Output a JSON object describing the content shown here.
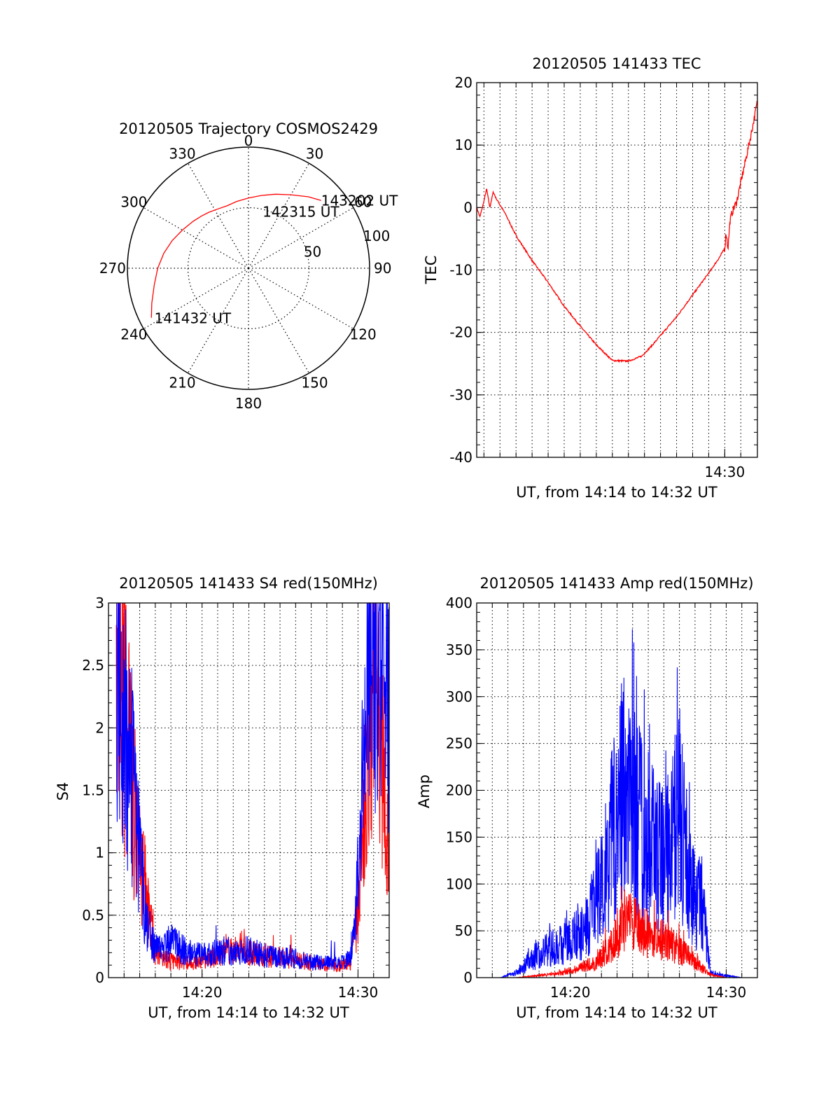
{
  "chart_data": [
    {
      "type": "polar",
      "title": "20120505 Trajectory COSMOS2429",
      "angle_labels": [
        "0",
        "30",
        "60",
        "90",
        "120",
        "150",
        "180",
        "210",
        "240",
        "270",
        "300",
        "330"
      ],
      "angles_deg": [
        0,
        30,
        60,
        90,
        120,
        150,
        180,
        210,
        240,
        270,
        300,
        330
      ],
      "radius_labels": [
        "50",
        "100"
      ],
      "radius_values": [
        50,
        100
      ],
      "rmax": 100,
      "trajectory": {
        "color": "#ff0000",
        "azimuth_deg": [
          243,
          250,
          260,
          270,
          280,
          290,
          300,
          310,
          318,
          325,
          333,
          341,
          350,
          0,
          10,
          20,
          30,
          40,
          47
        ],
        "radius": [
          90,
          85,
          79,
          75,
          71,
          67,
          63,
          60,
          58,
          56.5,
          55,
          54.5,
          56,
          58,
          61,
          65,
          70,
          77,
          82
        ]
      },
      "annotations": [
        {
          "text": "143202 UT",
          "azimuth_deg": 47,
          "radius": 82
        },
        {
          "text": "142315 UT",
          "azimuth_deg": 14,
          "radius": 48
        },
        {
          "text": "141432 UT",
          "azimuth_deg": 242,
          "radius": 88
        }
      ]
    },
    {
      "type": "line",
      "title": "20120505 141433 TEC",
      "xlabel": "UT, from 14:14 to 14:32 UT",
      "ylabel": "TEC",
      "xlim": [
        "14:14:33",
        "14:32:02"
      ],
      "ylim": [
        -40,
        20
      ],
      "yticks": [
        -40,
        -30,
        -20,
        -10,
        0,
        10,
        20
      ],
      "xticks": [
        "14:30"
      ],
      "grid": true,
      "series": [
        {
          "color": "#ff0000",
          "x": [
            "14:14:33",
            "14:14:45",
            "14:15:00",
            "14:15:10",
            "14:15:22",
            "14:15:35",
            "14:15:45",
            "14:16:20",
            "14:17:00",
            "14:18:00",
            "14:19:00",
            "14:20:00",
            "14:21:00",
            "14:22:00",
            "14:23:00",
            "14:24:00",
            "14:24:50",
            "14:25:30",
            "14:26:00",
            "14:27:00",
            "14:28:00",
            "14:29:00",
            "14:29:40",
            "14:30:00",
            "14:30:05",
            "14:30:12",
            "14:30:20",
            "14:30:30",
            "14:30:45",
            "14:31:00",
            "14:31:20",
            "14:31:40",
            "14:32:02"
          ],
          "y": [
            0,
            -1.5,
            1,
            3,
            0,
            2.5,
            1.5,
            -1,
            -4.5,
            -8.5,
            -12,
            -15.8,
            -19,
            -22,
            -24.5,
            -24.6,
            -23.8,
            -22,
            -20.5,
            -17.5,
            -14,
            -10.5,
            -8,
            -6.5,
            -4,
            -6.5,
            -2,
            -0.5,
            1,
            4,
            8,
            12,
            17
          ]
        }
      ]
    },
    {
      "type": "line",
      "title": "20120505 141433 S4 red(150MHz)",
      "xlabel": "UT, from 14:14 to 14:32 UT",
      "ylabel": "S4",
      "xlim": [
        "14:14:00",
        "14:32:00"
      ],
      "ylim": [
        0,
        3
      ],
      "yticks": [
        0,
        0.5,
        1,
        1.5,
        2,
        2.5,
        3
      ],
      "ytick_labels": [
        "0",
        "0.5",
        "1",
        "1.5",
        "2",
        "2.5",
        "3"
      ],
      "xticks": [
        "14:20",
        "14:30"
      ],
      "grid": true,
      "series": [
        {
          "color": "#ff0000",
          "x": [
            "14:14:30",
            "14:15:00",
            "14:15:30",
            "14:16:00",
            "14:16:30",
            "14:17:00",
            "14:18:00",
            "14:19:00",
            "14:20:00",
            "14:21:00",
            "14:21:30",
            "14:22:00",
            "14:23:00",
            "14:24:00",
            "14:25:00",
            "14:26:00",
            "14:27:00",
            "14:28:00",
            "14:29:00",
            "14:29:30",
            "14:30:00",
            "14:30:30",
            "14:31:00",
            "14:31:30",
            "14:32:00"
          ],
          "y": [
            3,
            2.2,
            1.5,
            1.0,
            0.6,
            0.2,
            0.13,
            0.12,
            0.12,
            0.18,
            0.25,
            0.22,
            0.2,
            0.18,
            0.16,
            0.14,
            0.12,
            0.1,
            0.1,
            0.12,
            0.5,
            1.5,
            2.6,
            1.8,
            1.1
          ]
        },
        {
          "color": "#0000ff",
          "x": [
            "14:14:30",
            "14:15:00",
            "14:15:30",
            "14:16:00",
            "14:16:30",
            "14:17:00",
            "14:18:00",
            "14:19:00",
            "14:20:00",
            "14:21:00",
            "14:21:30",
            "14:22:00",
            "14:23:00",
            "14:24:00",
            "14:25:00",
            "14:26:00",
            "14:27:00",
            "14:28:00",
            "14:29:00",
            "14:29:30",
            "14:30:00",
            "14:30:30",
            "14:31:00",
            "14:31:30",
            "14:32:00"
          ],
          "y": [
            2.8,
            2.1,
            1.6,
            0.9,
            0.4,
            0.22,
            0.3,
            0.2,
            0.18,
            0.2,
            0.22,
            0.2,
            0.22,
            0.18,
            0.16,
            0.15,
            0.12,
            0.12,
            0.12,
            0.15,
            0.8,
            2.0,
            2.7,
            2.6,
            2.5
          ]
        }
      ]
    },
    {
      "type": "line",
      "title": "20120505 141433 Amp red(150MHz)",
      "xlabel": "UT, from 14:14 to 14:32 UT",
      "ylabel": "Amp",
      "xlim": [
        "14:14:00",
        "14:32:00"
      ],
      "ylim": [
        0,
        400
      ],
      "yticks": [
        0,
        50,
        100,
        150,
        200,
        250,
        300,
        350,
        400
      ],
      "xticks": [
        "14:20",
        "14:30"
      ],
      "grid": true,
      "series": [
        {
          "color": "#0000ff",
          "x": [
            "14:14:30",
            "14:15:30",
            "14:16:30",
            "14:17:30",
            "14:18:30",
            "14:19:30",
            "14:20:00",
            "14:20:30",
            "14:21:00",
            "14:21:30",
            "14:22:00",
            "14:22:30",
            "14:23:00",
            "14:23:30",
            "14:24:00",
            "14:24:30",
            "14:25:00",
            "14:25:30",
            "14:26:00",
            "14:26:30",
            "14:27:00",
            "14:27:30",
            "14:28:00",
            "14:28:30",
            "14:29:00",
            "14:30:00",
            "14:31:00",
            "14:32:00"
          ],
          "y": [
            0,
            0,
            5,
            20,
            30,
            35,
            40,
            45,
            50,
            75,
            100,
            140,
            170,
            200,
            190,
            160,
            150,
            140,
            130,
            140,
            180,
            120,
            80,
            80,
            5,
            2,
            0,
            0
          ]
        },
        {
          "color": "#ff0000",
          "x": [
            "14:14:30",
            "14:16:30",
            "14:18:30",
            "14:19:30",
            "14:20:30",
            "14:21:30",
            "14:22:00",
            "14:22:30",
            "14:23:00",
            "14:23:30",
            "14:24:00",
            "14:24:30",
            "14:25:00",
            "14:25:30",
            "14:26:00",
            "14:26:30",
            "14:27:00",
            "14:27:30",
            "14:28:00",
            "14:28:30",
            "14:29:00",
            "14:30:00",
            "14:32:00"
          ],
          "y": [
            0,
            0,
            3,
            5,
            10,
            15,
            25,
            30,
            45,
            55,
            60,
            50,
            45,
            42,
            40,
            35,
            30,
            25,
            15,
            10,
            3,
            0,
            0
          ]
        }
      ]
    }
  ]
}
